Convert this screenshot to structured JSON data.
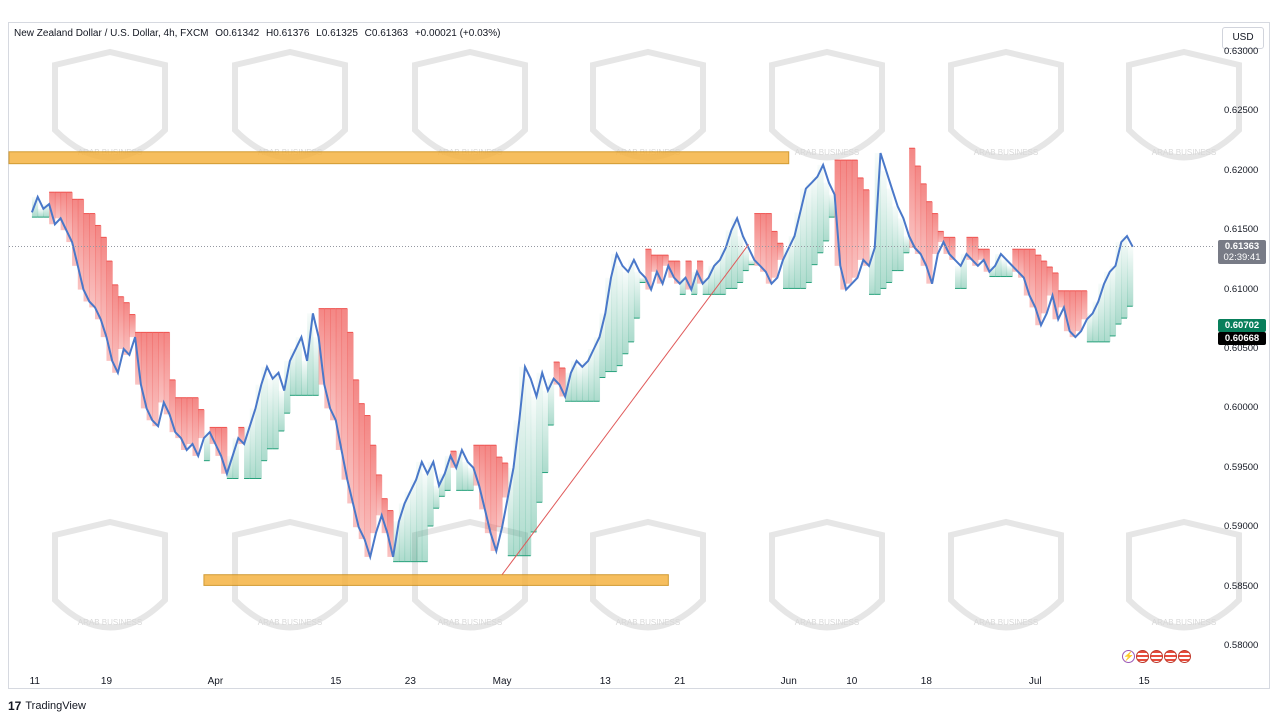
{
  "legend": {
    "symbol": "New Zealand Dollar / U.S. Dollar, 4h, FXCM",
    "open": "O0.61342",
    "high": "H0.61376",
    "low": "L0.61325",
    "close": "C0.61363",
    "change": "+0.00021 (+0.03%)"
  },
  "currency_label": "USD",
  "badges": {
    "last_price": "0.61363",
    "countdown": "02:39:41",
    "green_level": "0.60702",
    "black_level": "0.60668"
  },
  "footer": {
    "logo": "17",
    "brand": "TradingView"
  },
  "watermark_text": "ARAB BUSINESS",
  "colors": {
    "up_line": "#4a78c9",
    "bull_fill": "#26a17b",
    "bear_fill": "#ef5350",
    "zone": "#f5b342",
    "trendline": "#e05a5a"
  },
  "chart_data": {
    "type": "line",
    "title": "",
    "xlabel": "",
    "ylabel": "",
    "ylim": [
      0.5775,
      0.6315
    ],
    "y_ticks": [
      "0.63000",
      "0.62500",
      "0.62000",
      "0.61500",
      "0.61000",
      "0.60500",
      "0.60000",
      "0.59500",
      "0.59000",
      "0.58500",
      "0.58000"
    ],
    "x_ticks": [
      "11",
      "19",
      "Apr",
      "15",
      "23",
      "May",
      "13",
      "21",
      "Jun",
      "10",
      "18",
      "Jul",
      "15"
    ],
    "x_tick_index": [
      0.5,
      13,
      32,
      53,
      66,
      82,
      100,
      113,
      132,
      143,
      156,
      175,
      194
    ],
    "x_range": [
      -4,
      206
    ],
    "series": [
      {
        "values": [
          0.6165,
          0.6178,
          0.6168,
          0.6172,
          0.6155,
          0.616,
          0.615,
          0.614,
          0.612,
          0.61,
          0.609,
          0.6085,
          0.6075,
          0.606,
          0.604,
          0.603,
          0.605,
          0.6045,
          0.606,
          0.602,
          0.6,
          0.599,
          0.5985,
          0.6005,
          0.5995,
          0.598,
          0.5975,
          0.5965,
          0.597,
          0.596,
          0.5975,
          0.598,
          0.597,
          0.596,
          0.5945,
          0.596,
          0.5975,
          0.597,
          0.5985,
          0.6,
          0.602,
          0.6035,
          0.6025,
          0.603,
          0.6015,
          0.604,
          0.605,
          0.606,
          0.604,
          0.608,
          0.606,
          0.602,
          0.6,
          0.599,
          0.5965,
          0.594,
          0.592,
          0.59,
          0.589,
          0.5875,
          0.5895,
          0.591,
          0.5895,
          0.5875,
          0.5905,
          0.592,
          0.593,
          0.594,
          0.5955,
          0.5945,
          0.5955,
          0.5935,
          0.5945,
          0.596,
          0.595,
          0.5965,
          0.5955,
          0.595,
          0.5935,
          0.5915,
          0.5895,
          0.588,
          0.59,
          0.5925,
          0.595,
          0.599,
          0.6035,
          0.6025,
          0.601,
          0.603,
          0.6015,
          0.6025,
          0.602,
          0.601,
          0.603,
          0.604,
          0.6035,
          0.604,
          0.605,
          0.606,
          0.608,
          0.611,
          0.613,
          0.612,
          0.6115,
          0.6125,
          0.6115,
          0.611,
          0.61,
          0.6115,
          0.6105,
          0.612,
          0.611,
          0.6105,
          0.611,
          0.61,
          0.6115,
          0.6105,
          0.611,
          0.612,
          0.6125,
          0.6135,
          0.615,
          0.616,
          0.6145,
          0.6135,
          0.6125,
          0.612,
          0.6115,
          0.6105,
          0.611,
          0.6125,
          0.6135,
          0.6145,
          0.6165,
          0.6185,
          0.619,
          0.6195,
          0.6205,
          0.619,
          0.618,
          0.612,
          0.61,
          0.6105,
          0.611,
          0.6125,
          0.612,
          0.6135,
          0.6215,
          0.62,
          0.6185,
          0.617,
          0.616,
          0.6145,
          0.6135,
          0.613,
          0.612,
          0.6105,
          0.613,
          0.614,
          0.613,
          0.6125,
          0.612,
          0.613,
          0.6125,
          0.612,
          0.6125,
          0.6115,
          0.612,
          0.613,
          0.6125,
          0.612,
          0.6115,
          0.611,
          0.6095,
          0.6085,
          0.607,
          0.608,
          0.6095,
          0.6075,
          0.6085,
          0.6065,
          0.606,
          0.6065,
          0.6075,
          0.608,
          0.609,
          0.6105,
          0.6115,
          0.612,
          0.614,
          0.6145,
          0.6136
        ]
      }
    ],
    "zones": [
      {
        "x0": -4,
        "x1": 132,
        "y0": 0.6206,
        "y1": 0.6216
      },
      {
        "x0": 30,
        "x1": 111,
        "y0": 0.5851,
        "y1": 0.586
      }
    ],
    "trendline": {
      "x0": 82,
      "y0": 0.586,
      "x1": 125,
      "y1": 0.6138
    },
    "price_line": 0.61363
  }
}
